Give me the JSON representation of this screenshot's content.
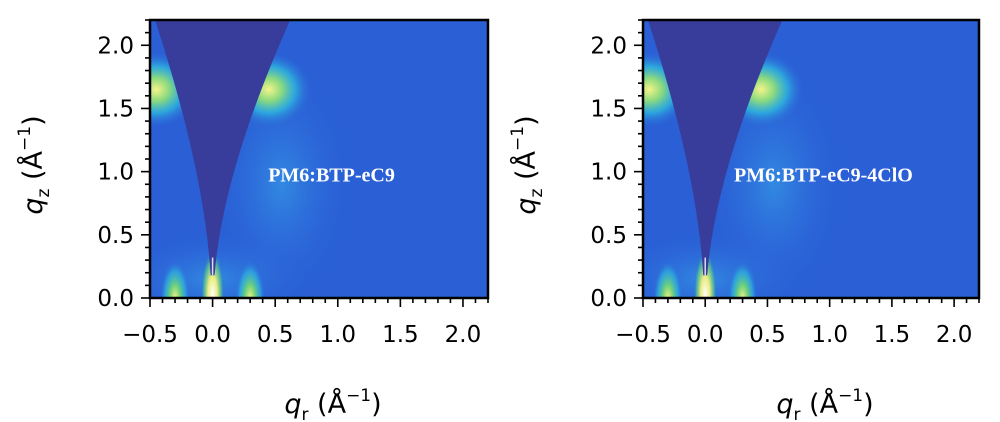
{
  "chart_data": [
    {
      "type": "heatmap",
      "title": "PM6:BTP-eC9",
      "xlabel": "q_r (Å⁻¹)",
      "ylabel": "q_z (Å⁻¹)",
      "xlim": [
        -0.5,
        2.2
      ],
      "ylim": [
        0.0,
        2.2
      ],
      "x_ticks": [
        "−0.5",
        "0.0",
        "0.5",
        "1.0",
        "1.5",
        "2.0"
      ],
      "y_ticks": [
        "0.0",
        "0.5",
        "1.0",
        "1.5",
        "2.0"
      ],
      "features": [
        {
          "kind": "lamellar-arc",
          "q_r": 0.45,
          "q_z": 1.65,
          "intensity": "high"
        },
        {
          "kind": "lamellar-arc",
          "q_r": -0.45,
          "q_z": 1.65,
          "intensity": "high"
        },
        {
          "kind": "in-plane-peak",
          "q_r": -0.3,
          "q_z": 0.05,
          "intensity": "medium"
        },
        {
          "kind": "in-plane-peak",
          "q_r": 0.3,
          "q_z": 0.05,
          "intensity": "medium"
        },
        {
          "kind": "specular-beam",
          "q_r": 0.0,
          "q_z": 0.05,
          "intensity": "very-high"
        }
      ]
    },
    {
      "type": "heatmap",
      "title": "PM6:BTP-eC9-4ClO",
      "xlabel": "q_r (Å⁻¹)",
      "ylabel": "q_z (Å⁻¹)",
      "xlim": [
        -0.5,
        2.2
      ],
      "ylim": [
        0.0,
        2.2
      ],
      "x_ticks": [
        "−0.5",
        "0.0",
        "0.5",
        "1.0",
        "1.5",
        "2.0"
      ],
      "y_ticks": [
        "0.0",
        "0.5",
        "1.0",
        "1.5",
        "2.0"
      ],
      "features": [
        {
          "kind": "lamellar-arc",
          "q_r": 0.45,
          "q_z": 1.65,
          "intensity": "high"
        },
        {
          "kind": "lamellar-arc",
          "q_r": -0.45,
          "q_z": 1.65,
          "intensity": "high"
        },
        {
          "kind": "in-plane-peak",
          "q_r": -0.3,
          "q_z": 0.05,
          "intensity": "medium"
        },
        {
          "kind": "in-plane-peak",
          "q_r": 0.3,
          "q_z": 0.05,
          "intensity": "medium"
        },
        {
          "kind": "specular-beam",
          "q_r": 0.0,
          "q_z": 0.05,
          "intensity": "very-high"
        }
      ]
    }
  ],
  "colors": {
    "background": "#2a5fd6",
    "wedge": "#383d9c",
    "cyan": "#2ec4e0",
    "green": "#5fd37a",
    "yellow": "#f3f27a"
  }
}
